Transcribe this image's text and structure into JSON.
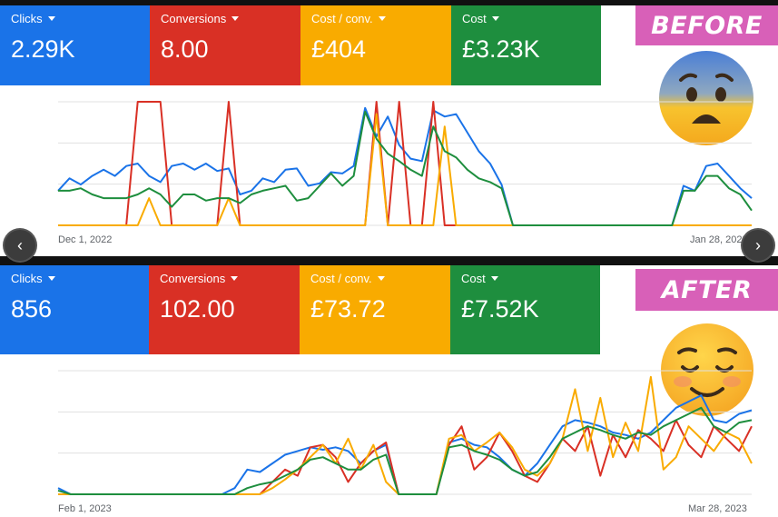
{
  "before": {
    "badge": "BEFORE",
    "metrics": [
      {
        "label": "Clicks",
        "value": "2.29K",
        "color": "#1a73e8"
      },
      {
        "label": "Conversions",
        "value": "8.00",
        "color": "#d93025"
      },
      {
        "label": "Cost / conv.",
        "value": "£404",
        "color": "#f9ab00"
      },
      {
        "label": "Cost",
        "value": "£3.23K",
        "color": "#1e8e3e"
      }
    ],
    "axis": {
      "start": "Dec 1, 2022",
      "end": "Jan 28, 2023"
    },
    "emoji": "anxious-face-icon"
  },
  "after": {
    "badge": "AFTER",
    "metrics": [
      {
        "label": "Clicks",
        "value": "856",
        "color": "#1a73e8"
      },
      {
        "label": "Conversions",
        "value": "102.00",
        "color": "#d93025"
      },
      {
        "label": "Cost / conv.",
        "value": "£73.72",
        "color": "#f9ab00"
      },
      {
        "label": "Cost",
        "value": "£7.52K",
        "color": "#1e8e3e"
      }
    ],
    "axis": {
      "start": "Feb 1, 2023",
      "end": "Mar 28, 2023"
    },
    "emoji": "smiling-face-icon"
  },
  "nav": {
    "prev": "‹",
    "next": "›"
  },
  "chart_data": [
    {
      "type": "line",
      "x_start": "Dec 1, 2022",
      "x_end": "Jan 28, 2023",
      "ylim": [
        0,
        100
      ],
      "series": [
        {
          "name": "Clicks",
          "color": "#1a73e8",
          "values": [
            28,
            38,
            33,
            40,
            45,
            40,
            48,
            50,
            40,
            35,
            48,
            50,
            45,
            50,
            44,
            46,
            25,
            28,
            38,
            35,
            45,
            46,
            32,
            34,
            43,
            42,
            48,
            95,
            72,
            88,
            65,
            54,
            52,
            93,
            88,
            90,
            75,
            60,
            50,
            33,
            0,
            0,
            0,
            0,
            0,
            0,
            0,
            0,
            0,
            0,
            0,
            0,
            0,
            0,
            0,
            32,
            28,
            48,
            50,
            40,
            30,
            22
          ]
        },
        {
          "name": "Conversions",
          "color": "#d93025",
          "values": [
            0,
            0,
            0,
            0,
            0,
            0,
            0,
            100,
            100,
            100,
            0,
            0,
            0,
            0,
            0,
            100,
            0,
            0,
            0,
            0,
            0,
            0,
            0,
            0,
            0,
            0,
            0,
            0,
            100,
            0,
            100,
            0,
            0,
            100,
            0,
            0,
            0,
            0,
            0,
            0,
            0,
            0,
            0,
            0,
            0,
            0,
            0,
            0,
            0,
            0,
            0,
            0,
            0,
            0,
            0,
            0,
            0,
            0,
            0,
            0,
            0,
            0
          ]
        },
        {
          "name": "Cost / conv.",
          "color": "#f9ab00",
          "values": [
            0,
            0,
            0,
            0,
            0,
            0,
            0,
            0,
            22,
            0,
            0,
            0,
            0,
            0,
            0,
            22,
            0,
            0,
            0,
            0,
            0,
            0,
            0,
            0,
            0,
            0,
            0,
            0,
            90,
            0,
            0,
            0,
            0,
            0,
            80,
            0,
            0,
            0,
            0,
            0,
            0,
            0,
            0,
            0,
            0,
            0,
            0,
            0,
            0,
            0,
            0,
            0,
            0,
            0,
            0,
            0,
            0,
            0,
            0,
            0,
            0,
            0
          ]
        },
        {
          "name": "Cost",
          "color": "#1e8e3e",
          "values": [
            28,
            28,
            30,
            25,
            22,
            22,
            22,
            25,
            30,
            25,
            15,
            25,
            25,
            20,
            22,
            22,
            18,
            25,
            28,
            30,
            32,
            20,
            22,
            32,
            42,
            32,
            40,
            92,
            70,
            58,
            52,
            45,
            40,
            80,
            60,
            55,
            45,
            38,
            35,
            30,
            0,
            0,
            0,
            0,
            0,
            0,
            0,
            0,
            0,
            0,
            0,
            0,
            0,
            0,
            0,
            28,
            28,
            40,
            40,
            30,
            25,
            12
          ]
        }
      ]
    },
    {
      "type": "line",
      "x_start": "Feb 1, 2023",
      "x_end": "Mar 28, 2023",
      "ylim": [
        0,
        100
      ],
      "series": [
        {
          "name": "Clicks",
          "color": "#1a73e8",
          "values": [
            5,
            0,
            0,
            0,
            0,
            0,
            0,
            0,
            0,
            0,
            0,
            0,
            0,
            0,
            5,
            20,
            18,
            25,
            32,
            35,
            38,
            36,
            38,
            35,
            25,
            35,
            40,
            0,
            0,
            0,
            0,
            42,
            45,
            40,
            38,
            30,
            20,
            15,
            25,
            40,
            55,
            60,
            58,
            55,
            50,
            48,
            45,
            50,
            60,
            70,
            75,
            80,
            60,
            58,
            65,
            68
          ]
        },
        {
          "name": "Conversions",
          "color": "#d93025",
          "values": [
            0,
            0,
            0,
            0,
            0,
            0,
            0,
            0,
            0,
            0,
            0,
            0,
            0,
            0,
            0,
            0,
            0,
            10,
            20,
            15,
            38,
            40,
            30,
            10,
            25,
            35,
            42,
            0,
            0,
            0,
            0,
            40,
            55,
            20,
            30,
            50,
            35,
            15,
            10,
            25,
            45,
            35,
            55,
            15,
            48,
            30,
            52,
            45,
            35,
            60,
            40,
            30,
            55,
            45,
            35,
            55
          ]
        },
        {
          "name": "Cost / conv.",
          "color": "#f9ab00",
          "values": [
            0,
            0,
            0,
            0,
            0,
            0,
            0,
            0,
            0,
            0,
            0,
            0,
            0,
            0,
            0,
            0,
            0,
            5,
            12,
            20,
            30,
            40,
            25,
            45,
            20,
            40,
            10,
            0,
            0,
            0,
            0,
            45,
            48,
            35,
            42,
            50,
            38,
            20,
            15,
            25,
            45,
            85,
            35,
            78,
            30,
            58,
            35,
            95,
            20,
            30,
            55,
            45,
            35,
            50,
            45,
            25
          ]
        },
        {
          "name": "Cost",
          "color": "#1e8e3e",
          "values": [
            3,
            0,
            0,
            0,
            0,
            0,
            0,
            0,
            0,
            0,
            0,
            0,
            0,
            0,
            0,
            5,
            8,
            10,
            15,
            20,
            28,
            30,
            25,
            20,
            20,
            28,
            32,
            0,
            0,
            0,
            0,
            38,
            40,
            35,
            32,
            28,
            20,
            15,
            18,
            30,
            45,
            50,
            55,
            52,
            48,
            45,
            50,
            48,
            55,
            60,
            65,
            70,
            55,
            50,
            58,
            60
          ]
        }
      ]
    }
  ]
}
